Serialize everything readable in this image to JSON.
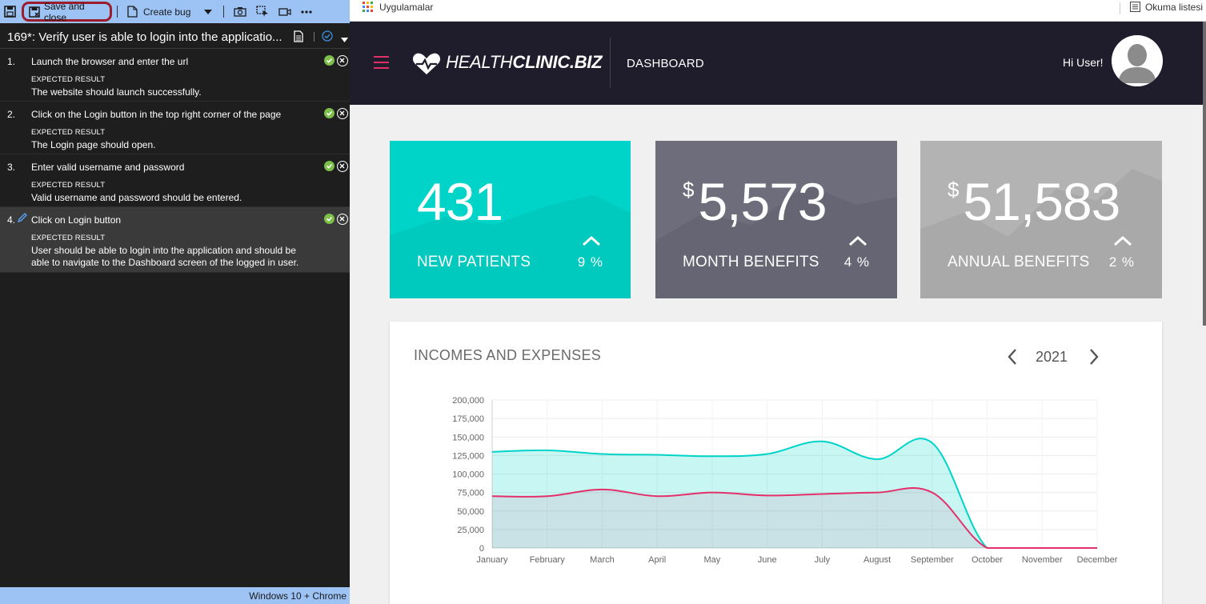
{
  "runner": {
    "toolbar": {
      "save_close": "Save and close",
      "create_bug": "Create bug"
    },
    "test_title": "169*: Verify user is able to login into the applicatio...",
    "expected_label": "EXPECTED RESULT",
    "steps": [
      {
        "num": "1.",
        "action": "Launch the browser and enter the url",
        "expected": "The website should launch successfully."
      },
      {
        "num": "2.",
        "action": "Click on the Login button in the top right corner of the page",
        "expected": "The Login page should open."
      },
      {
        "num": "3.",
        "action": "Enter valid username and password",
        "expected": "Valid username and password should be entered."
      },
      {
        "num": "4.",
        "action": "Click on Login button",
        "expected": "User should be able to login into the application and should be able to navigate to the Dashboard screen of the logged in user."
      }
    ],
    "environment": "Windows 10 + Chrome"
  },
  "browser": {
    "bookmarks": {
      "apps": "Uygulamalar",
      "reading_list": "Okuma listesi"
    }
  },
  "app": {
    "brand_light": "HEALTH",
    "brand_bold": "CLINIC.BIZ",
    "nav_title": "DASHBOARD",
    "greeting": "Hi User!",
    "colors": {
      "accent": "#e3306a",
      "teal": "#00d4c8",
      "header": "#1f1d2b"
    },
    "cards": [
      {
        "value": "431",
        "prefix": "",
        "label": "NEW PATIENTS",
        "percent": "9 %",
        "color": "#00d4c8"
      },
      {
        "value": "5,573",
        "prefix": "$",
        "label": "MONTH BENEFITS",
        "percent": "4 %",
        "color": "#6e6d7c"
      },
      {
        "value": "51,583",
        "prefix": "$",
        "label": "ANNUAL BENEFITS",
        "percent": "2 %",
        "color": "#b3b3b3"
      }
    ],
    "chart": {
      "title": "INCOMES AND EXPENSES",
      "year": "2021"
    }
  },
  "chart_data": {
    "type": "area",
    "title": "INCOMES AND EXPENSES",
    "categories": [
      "January",
      "February",
      "March",
      "April",
      "May",
      "June",
      "July",
      "August",
      "September",
      "October",
      "November",
      "December"
    ],
    "y_ticks": [
      "0",
      "25,000",
      "50,000",
      "75,000",
      "100,000",
      "125,000",
      "150,000",
      "175,000",
      "200,000"
    ],
    "ylim": [
      0,
      200000
    ],
    "grid": true,
    "series": [
      {
        "values": [
          130000,
          132000,
          127000,
          126000,
          124000,
          127000,
          144000,
          120000,
          142000,
          0,
          0,
          0
        ],
        "color": "#00d4c8"
      },
      {
        "values": [
          70000,
          70000,
          79000,
          70000,
          75000,
          71000,
          73000,
          75000,
          75000,
          0,
          0,
          0
        ],
        "color": "#e3306a"
      }
    ]
  }
}
